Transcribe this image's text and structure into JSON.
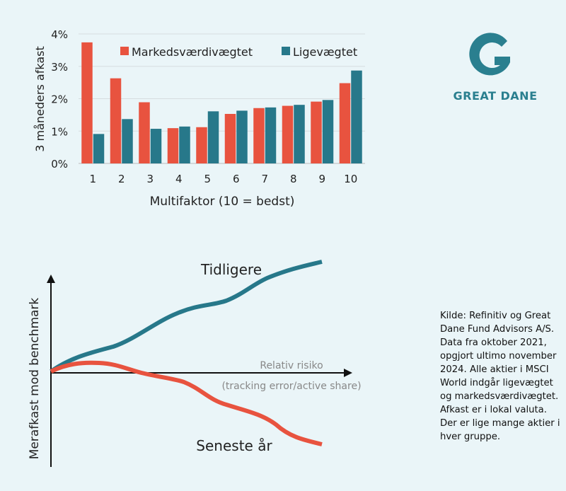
{
  "chart_data": {
    "type": "bar",
    "categories": [
      "1",
      "2",
      "3",
      "4",
      "5",
      "6",
      "7",
      "8",
      "9",
      "10"
    ],
    "series": [
      {
        "name": "Markedsværdivægtet",
        "color": "#e8533f",
        "values": [
          3.74,
          2.63,
          1.89,
          1.09,
          1.12,
          1.53,
          1.71,
          1.78,
          1.91,
          2.48
        ]
      },
      {
        "name": "Ligevægtet",
        "color": "#27788a",
        "values": [
          0.91,
          1.37,
          1.07,
          1.14,
          1.61,
          1.63,
          1.73,
          1.81,
          1.96,
          2.87
        ]
      }
    ],
    "xlabel": "Multifaktor (10 = bedst)",
    "ylabel": "3 måneders afkast",
    "ylim": [
      0,
      4
    ],
    "yticks": [
      "0%",
      "1%",
      "2%",
      "3%",
      "4%"
    ],
    "grid": true,
    "legend": "top-right"
  },
  "logo": {
    "text": "GREAT DANE",
    "color": "#2a7f8f"
  },
  "diagram": {
    "y_axis_label": "Merafkast mod benchmark",
    "x_axis_label": "Relativ risiko",
    "x_axis_sublabel": "(tracking error/active share)",
    "upper_line_label": "Tidligere",
    "lower_line_label": "Seneste år",
    "upper_color": "#27788a",
    "lower_color": "#e8533f"
  },
  "note": "Kilde: Refinitiv og Great Dane Fund Advisors A/S. Data fra oktober 2021, opgjort ultimo november 2024. Alle aktier i MSCI World indgår ligevægtet og markedsværdivægtet. Afkast er i lokal valuta. Der er lige mange aktier i hver gruppe."
}
